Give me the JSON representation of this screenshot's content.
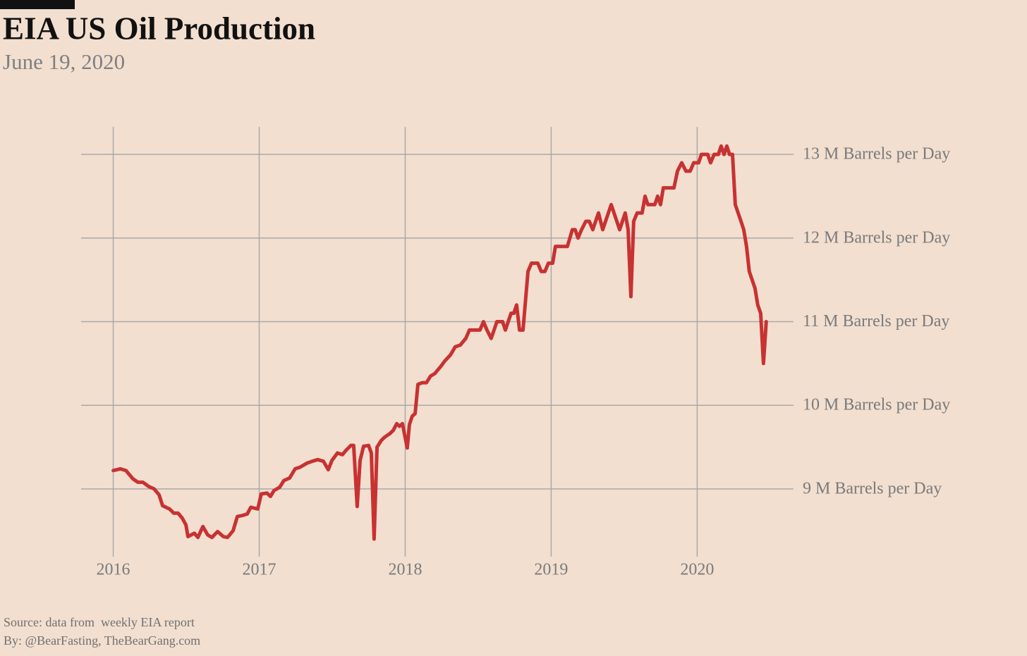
{
  "chart_data": {
    "type": "line",
    "title": "EIA US Oil Production",
    "subtitle": "June 19, 2020",
    "source": "Source: data from  weekly EIA report",
    "byline": "By: @BearFasting, TheBearGang.com",
    "color": "#c83232",
    "grid": true,
    "xlim": [
      2015.78,
      2020.66
    ],
    "xticks": [
      2016,
      2017,
      2018,
      2019,
      2020
    ],
    "ylim": [
      8.19,
      13.33
    ],
    "yticks": [
      {
        "value": 9,
        "label": "9 M Barrels per Day"
      },
      {
        "value": 10,
        "label": "10 M Barrels per Day"
      },
      {
        "value": 11,
        "label": "11 M Barrels per Day"
      },
      {
        "value": 12,
        "label": "12 M Barrels per Day"
      },
      {
        "value": 13,
        "label": "13 M Barrels per Day"
      }
    ],
    "x": [
      2016.0,
      2016.048,
      2016.087,
      2016.135,
      2016.169,
      2016.203,
      2016.242,
      2016.28,
      2016.314,
      2016.338,
      2016.386,
      2016.415,
      2016.444,
      2016.473,
      2016.498,
      2016.512,
      2016.556,
      2016.58,
      2016.614,
      2016.647,
      2016.676,
      2016.715,
      2016.754,
      2016.783,
      2016.821,
      2016.85,
      2016.879,
      2016.918,
      2016.942,
      2016.99,
      2017.014,
      2017.053,
      2017.077,
      2017.101,
      2017.14,
      2017.169,
      2017.208,
      2017.246,
      2017.28,
      2017.329,
      2017.362,
      2017.401,
      2017.44,
      2017.473,
      2017.498,
      2017.536,
      2017.57,
      2017.594,
      2017.628,
      2017.647,
      2017.671,
      2017.691,
      2017.715,
      2017.749,
      2017.768,
      2017.787,
      2017.807,
      2017.836,
      2017.86,
      2017.894,
      2017.918,
      2017.942,
      2017.961,
      2017.981,
      2018.014,
      2018.029,
      2018.048,
      2018.068,
      2018.087,
      2018.116,
      2018.145,
      2018.174,
      2018.203,
      2018.246,
      2018.271,
      2018.309,
      2018.343,
      2018.377,
      2018.415,
      2018.44,
      2018.488,
      2018.512,
      2018.536,
      2018.56,
      2018.589,
      2018.628,
      2018.667,
      2018.686,
      2018.725,
      2018.744,
      2018.763,
      2018.783,
      2018.807,
      2018.841,
      2018.865,
      2018.908,
      2018.932,
      2018.957,
      2018.981,
      2019.01,
      2019.029,
      2019.068,
      2019.111,
      2019.145,
      2019.164,
      2019.184,
      2019.208,
      2019.237,
      2019.261,
      2019.285,
      2019.324,
      2019.353,
      2019.411,
      2019.469,
      2019.507,
      2019.527,
      2019.546,
      2019.565,
      2019.589,
      2019.623,
      2019.643,
      2019.662,
      2019.71,
      2019.729,
      2019.749,
      2019.768,
      2019.816,
      2019.841,
      2019.865,
      2019.894,
      2019.923,
      2019.952,
      2019.976,
      2020.01,
      2020.029,
      2020.072,
      2020.092,
      2020.116,
      2020.145,
      2020.164,
      2020.184,
      2020.203,
      2020.222,
      2020.242,
      2020.261,
      2020.3,
      2020.319,
      2020.338,
      2020.357,
      2020.396,
      2020.415,
      2020.435,
      2020.454,
      2020.473
    ],
    "values": [
      9.22,
      9.24,
      9.22,
      9.12,
      9.08,
      9.08,
      9.03,
      9.0,
      8.93,
      8.8,
      8.76,
      8.71,
      8.71,
      8.65,
      8.57,
      8.43,
      8.47,
      8.42,
      8.55,
      8.45,
      8.42,
      8.49,
      8.43,
      8.42,
      8.5,
      8.67,
      8.68,
      8.7,
      8.78,
      8.76,
      8.94,
      8.95,
      8.91,
      8.98,
      9.02,
      9.1,
      9.13,
      9.24,
      9.26,
      9.31,
      9.33,
      9.35,
      9.33,
      9.23,
      9.34,
      9.43,
      9.41,
      9.46,
      9.52,
      9.52,
      8.79,
      9.34,
      9.51,
      9.52,
      9.43,
      8.4,
      9.5,
      9.58,
      9.62,
      9.66,
      9.7,
      9.78,
      9.75,
      9.78,
      9.49,
      9.77,
      9.87,
      9.9,
      10.25,
      10.27,
      10.27,
      10.35,
      10.38,
      10.47,
      10.53,
      10.6,
      10.7,
      10.72,
      10.8,
      10.9,
      10.9,
      10.9,
      11.0,
      10.9,
      10.8,
      11.0,
      11.0,
      10.9,
      11.1,
      11.1,
      11.2,
      10.9,
      10.9,
      11.6,
      11.7,
      11.7,
      11.6,
      11.6,
      11.7,
      11.7,
      11.9,
      11.9,
      11.9,
      12.1,
      12.1,
      12.0,
      12.1,
      12.2,
      12.2,
      12.1,
      12.3,
      12.1,
      12.4,
      12.1,
      12.3,
      12.1,
      11.3,
      12.2,
      12.3,
      12.3,
      12.5,
      12.4,
      12.4,
      12.5,
      12.4,
      12.6,
      12.6,
      12.6,
      12.8,
      12.9,
      12.8,
      12.8,
      12.9,
      12.9,
      13.0,
      13.0,
      12.9,
      13.0,
      13.0,
      13.1,
      13.0,
      13.1,
      13.0,
      13.0,
      12.4,
      12.2,
      12.1,
      11.9,
      11.6,
      11.4,
      11.2,
      11.1,
      10.5,
      11.0
    ]
  }
}
